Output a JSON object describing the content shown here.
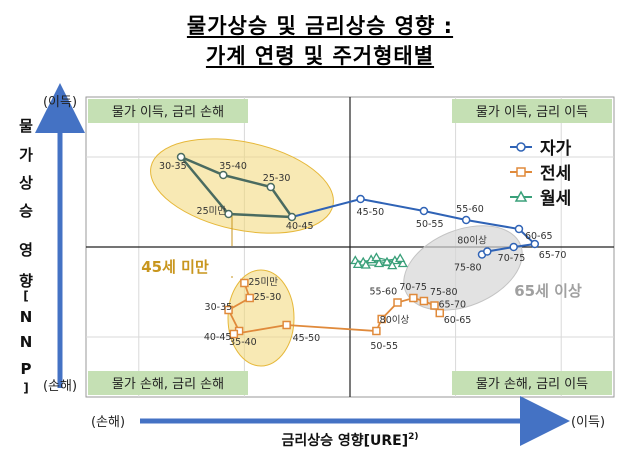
{
  "title_line1": "물가상승 및 금리상승 영향 :",
  "title_line2": "가계 연령 및 주거형태별",
  "y_axis": {
    "label_chars": [
      "물",
      "가",
      "상",
      "승",
      "영",
      "향",
      "[",
      "N",
      "N",
      "P",
      "]"
    ],
    "top": "(이득)",
    "bottom": "(손해)"
  },
  "x_axis": {
    "label": "금리상승 영향[URE]",
    "label_sup": "2)",
    "left": "(손해)",
    "right": "(이득)"
  },
  "quadrants": {
    "top_left": "물가 이득, 금리 손해",
    "top_right": "물가 이득, 금리 이득",
    "bottom_left": "물가 손해, 금리 손해",
    "bottom_right": "물가 손해, 금리 이득"
  },
  "group_labels": {
    "under45": "45세 미만",
    "over65": "65세 이상"
  },
  "colors": {
    "own": "#2f63b6",
    "jeonse": "#e08a3b",
    "monthly": "#3aa07a",
    "young_series": "#4a6b60",
    "ellipse_yellow": "#f2d777",
    "ellipse_gray": "#d6d6d6",
    "quadrant_box": "#c5e0b4",
    "axis_arrow": "#4472c4",
    "group_label_45": "#c8961e",
    "group_label_65": "#a0a0a0"
  },
  "chart_data": {
    "type": "scatter",
    "xlim": [
      -5,
      5
    ],
    "ylim": [
      -5,
      5
    ],
    "x_ticks_shown": false,
    "y_ticks_shown": false,
    "grid": true,
    "legend_position": "top-right",
    "legend": [
      "자가",
      "전세",
      "월세"
    ],
    "series": [
      {
        "name": "자가",
        "marker": "circle",
        "points": [
          {
            "label": "30-35",
            "x": -3.2,
            "y": 3.0
          },
          {
            "label": "35-40",
            "x": -2.4,
            "y": 2.4
          },
          {
            "label": "25-30",
            "x": -1.5,
            "y": 2.0
          },
          {
            "label": "25미만",
            "x": -2.3,
            "y": 1.1
          },
          {
            "label": "40-45",
            "x": -1.1,
            "y": 1.0
          },
          {
            "label": "45-50",
            "x": 0.2,
            "y": 1.6
          },
          {
            "label": "50-55",
            "x": 1.4,
            "y": 1.2
          },
          {
            "label": "55-60",
            "x": 2.2,
            "y": 0.9
          },
          {
            "label": "60-65",
            "x": 3.2,
            "y": 0.6
          },
          {
            "label": "65-70",
            "x": 3.5,
            "y": 0.1
          },
          {
            "label": "70-75",
            "x": 3.1,
            "y": 0.0
          },
          {
            "label": "75-80",
            "x": 2.5,
            "y": -0.25
          },
          {
            "label": "80이상",
            "x": 2.6,
            "y": -0.15
          }
        ]
      },
      {
        "name": "전세",
        "marker": "square",
        "points": [
          {
            "label": "25미만",
            "x": -2.0,
            "y": -1.2
          },
          {
            "label": "25-30",
            "x": -1.9,
            "y": -1.7
          },
          {
            "label": "30-35",
            "x": -2.3,
            "y": -2.1
          },
          {
            "label": "35-40",
            "x": -2.1,
            "y": -2.8
          },
          {
            "label": "40-45",
            "x": -2.2,
            "y": -2.9
          },
          {
            "label": "45-50",
            "x": -1.2,
            "y": -2.6
          },
          {
            "label": "50-55",
            "x": 0.5,
            "y": -2.8
          },
          {
            "label": "55-60",
            "x": 0.9,
            "y": -1.85
          },
          {
            "label": "60-65",
            "x": 1.7,
            "y": -2.2
          },
          {
            "label": "65-70",
            "x": 1.6,
            "y": -1.95
          },
          {
            "label": "70-75",
            "x": 1.2,
            "y": -1.7
          },
          {
            "label": "75-80",
            "x": 1.4,
            "y": -1.8
          },
          {
            "label": "80이상",
            "x": 0.6,
            "y": -2.4
          }
        ]
      },
      {
        "name": "월세",
        "marker": "triangle",
        "points": [
          {
            "x": 0.1,
            "y": -0.45
          },
          {
            "x": 0.25,
            "y": -0.5
          },
          {
            "x": 0.4,
            "y": -0.42
          },
          {
            "x": 0.55,
            "y": -0.55
          },
          {
            "x": 0.7,
            "y": -0.5
          },
          {
            "x": 0.85,
            "y": -0.45
          },
          {
            "x": 1.0,
            "y": -0.55
          },
          {
            "x": 0.5,
            "y": -0.35
          },
          {
            "x": 0.3,
            "y": -0.6
          },
          {
            "x": 0.8,
            "y": -0.62
          },
          {
            "x": 0.95,
            "y": -0.38
          },
          {
            "x": 0.15,
            "y": -0.58
          }
        ]
      }
    ]
  }
}
